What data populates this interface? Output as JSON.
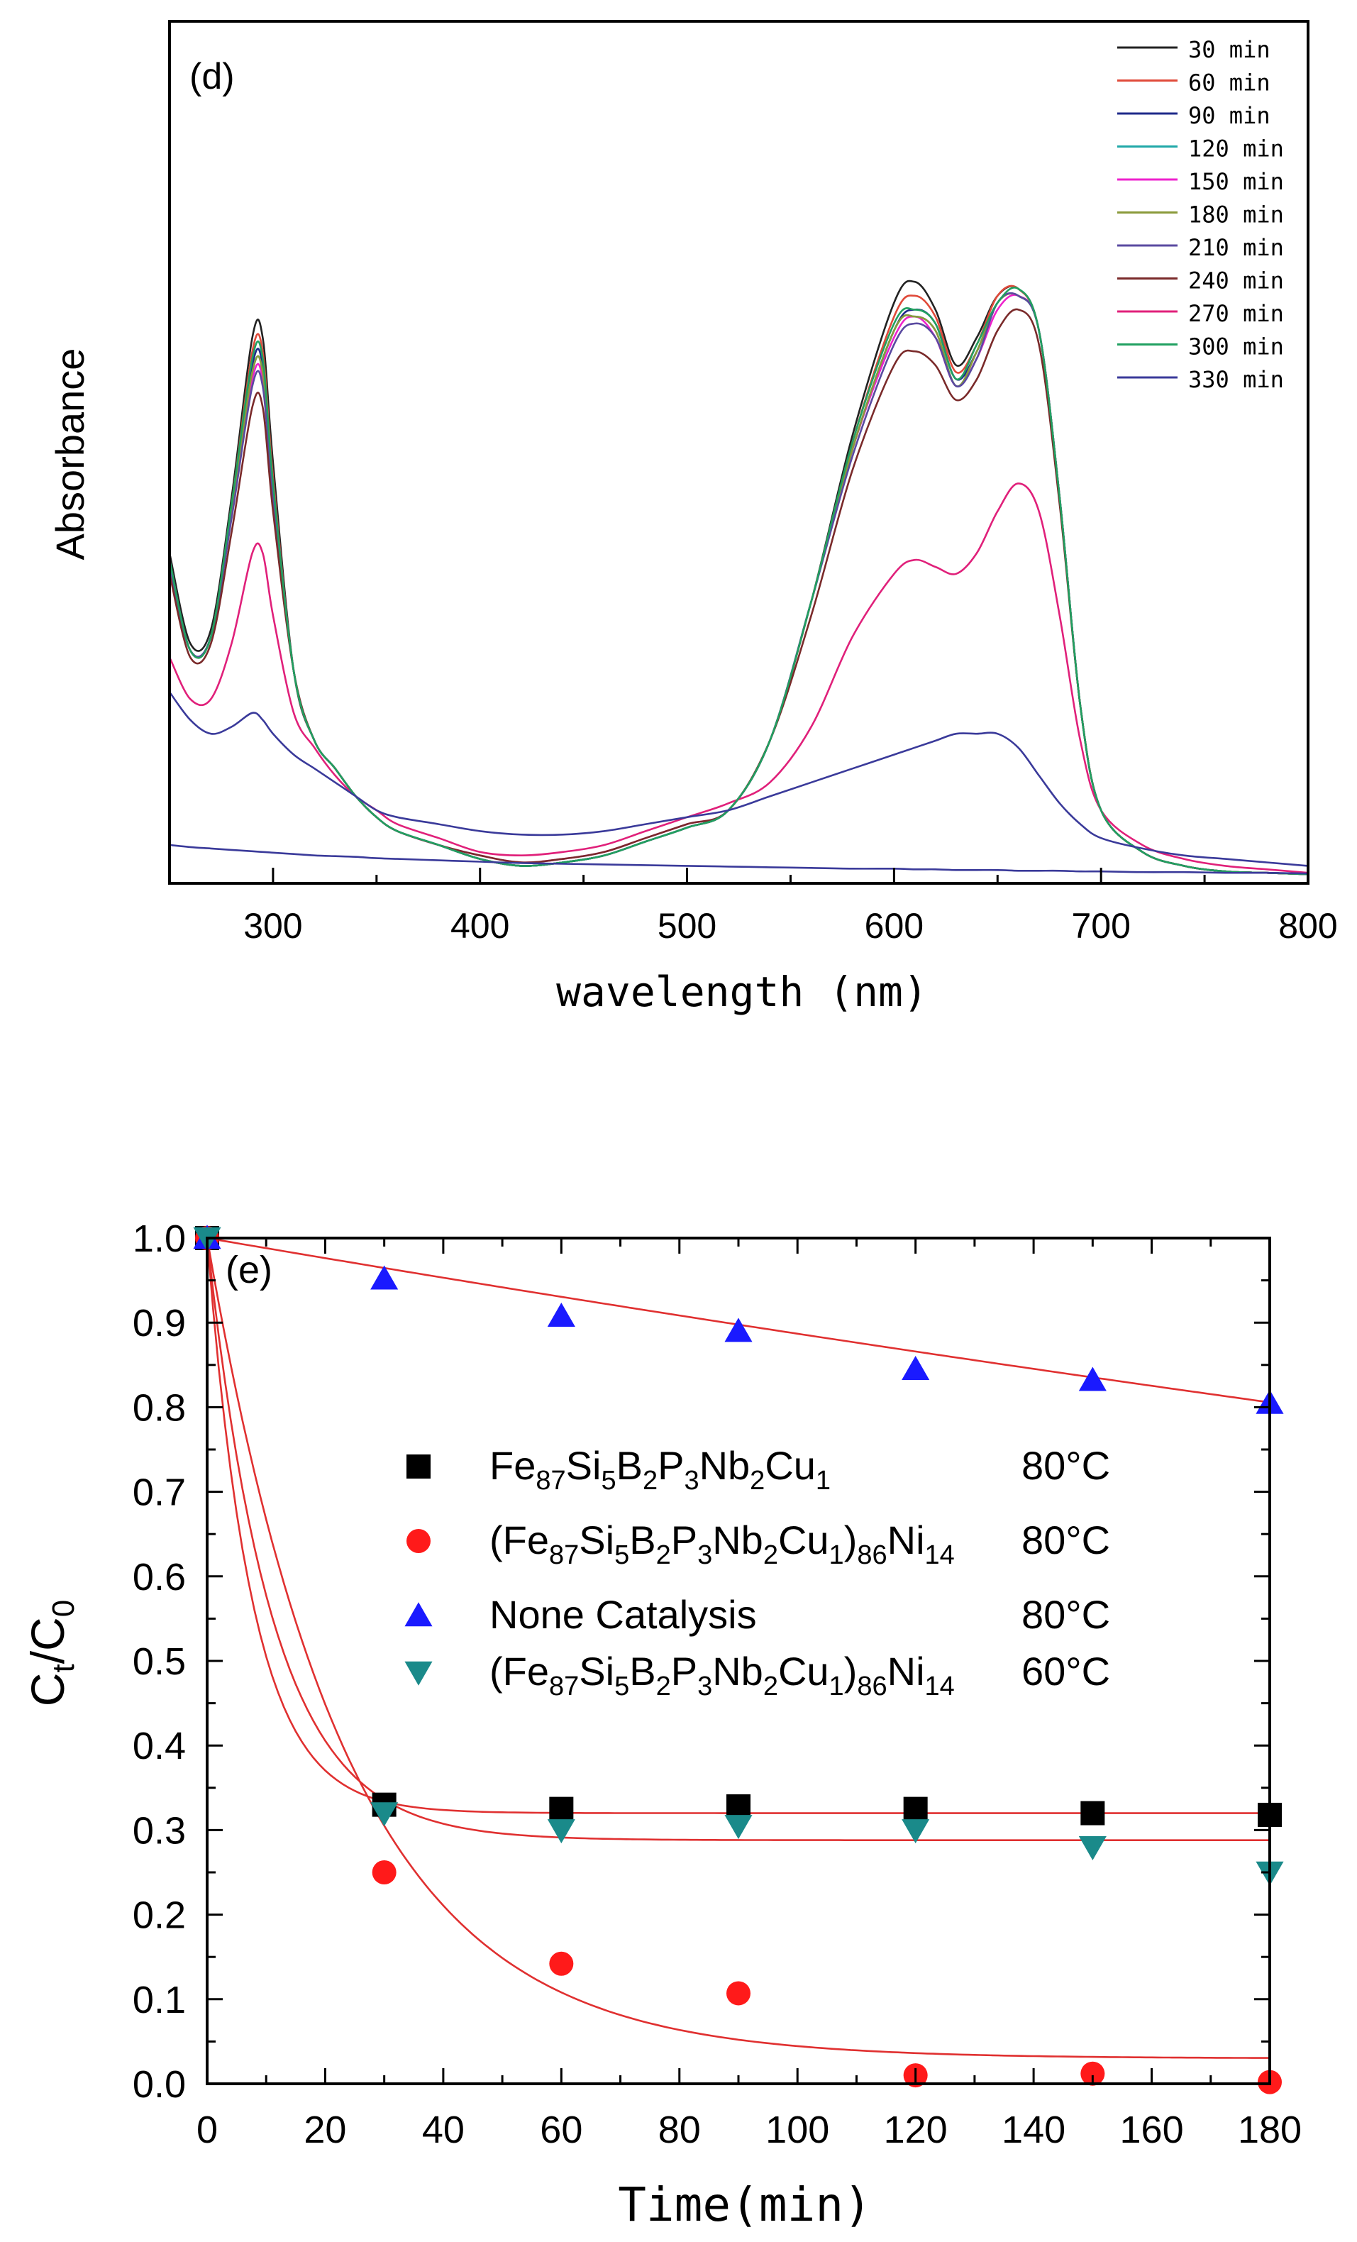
{
  "chart_data": [
    {
      "type": "line",
      "panel_label": "(d)",
      "xlabel": "wavelength (nm)",
      "ylabel": "Absorbance",
      "xlim": [
        250,
        800
      ],
      "ylim": [
        0,
        1.0
      ],
      "yticks_shown": false,
      "xticks": [
        "300",
        "400",
        "500",
        "600",
        "700",
        "800"
      ],
      "legend_position": "top-right",
      "x": [
        250,
        260,
        270,
        280,
        290,
        295,
        300,
        310,
        320,
        330,
        340,
        350,
        360,
        380,
        400,
        420,
        440,
        460,
        480,
        500,
        520,
        540,
        560,
        580,
        600,
        610,
        620,
        630,
        640,
        650,
        660,
        670,
        680,
        690,
        700,
        720,
        740,
        760,
        780,
        800
      ],
      "series": [
        {
          "name": "30 min",
          "color": "#222222",
          "values": [
            0.47,
            0.34,
            0.36,
            0.55,
            0.78,
            0.78,
            0.6,
            0.3,
            0.2,
            0.16,
            0.12,
            0.09,
            0.07,
            0.05,
            0.03,
            0.02,
            0.025,
            0.035,
            0.055,
            0.075,
            0.1,
            0.2,
            0.4,
            0.64,
            0.83,
            0.86,
            0.82,
            0.74,
            0.78,
            0.84,
            0.85,
            0.79,
            0.55,
            0.25,
            0.1,
            0.04,
            0.02,
            0.012,
            0.01,
            0.008
          ]
        },
        {
          "name": "60 min",
          "color": "#e04a3a",
          "values": [
            0.46,
            0.33,
            0.35,
            0.54,
            0.76,
            0.76,
            0.58,
            0.3,
            0.2,
            0.16,
            0.12,
            0.09,
            0.07,
            0.05,
            0.03,
            0.02,
            0.025,
            0.035,
            0.055,
            0.075,
            0.1,
            0.2,
            0.4,
            0.63,
            0.81,
            0.84,
            0.81,
            0.73,
            0.77,
            0.84,
            0.85,
            0.79,
            0.55,
            0.25,
            0.1,
            0.04,
            0.02,
            0.012,
            0.01,
            0.008
          ]
        },
        {
          "name": "90 min",
          "color": "#1f2a8a",
          "values": [
            0.46,
            0.33,
            0.35,
            0.53,
            0.74,
            0.74,
            0.57,
            0.3,
            0.2,
            0.16,
            0.12,
            0.09,
            0.07,
            0.05,
            0.03,
            0.02,
            0.025,
            0.035,
            0.055,
            0.075,
            0.1,
            0.2,
            0.4,
            0.62,
            0.79,
            0.82,
            0.8,
            0.72,
            0.76,
            0.83,
            0.84,
            0.79,
            0.55,
            0.25,
            0.1,
            0.04,
            0.02,
            0.012,
            0.01,
            0.008
          ]
        },
        {
          "name": "120 min",
          "color": "#20a8a8",
          "values": [
            0.45,
            0.33,
            0.35,
            0.53,
            0.73,
            0.73,
            0.56,
            0.3,
            0.2,
            0.16,
            0.12,
            0.09,
            0.07,
            0.05,
            0.03,
            0.02,
            0.025,
            0.035,
            0.055,
            0.075,
            0.1,
            0.2,
            0.4,
            0.62,
            0.79,
            0.81,
            0.79,
            0.71,
            0.76,
            0.83,
            0.84,
            0.79,
            0.55,
            0.25,
            0.1,
            0.04,
            0.02,
            0.012,
            0.01,
            0.008
          ]
        },
        {
          "name": "150 min",
          "color": "#ee22cc",
          "values": [
            0.45,
            0.33,
            0.35,
            0.53,
            0.72,
            0.72,
            0.56,
            0.3,
            0.2,
            0.16,
            0.12,
            0.09,
            0.07,
            0.05,
            0.035,
            0.025,
            0.03,
            0.04,
            0.06,
            0.08,
            0.1,
            0.2,
            0.4,
            0.62,
            0.78,
            0.81,
            0.78,
            0.71,
            0.75,
            0.82,
            0.84,
            0.79,
            0.55,
            0.25,
            0.1,
            0.04,
            0.02,
            0.012,
            0.01,
            0.008
          ]
        },
        {
          "name": "180 min",
          "color": "#8a9a3a",
          "values": [
            0.45,
            0.33,
            0.35,
            0.53,
            0.73,
            0.73,
            0.56,
            0.3,
            0.2,
            0.16,
            0.12,
            0.09,
            0.07,
            0.05,
            0.03,
            0.02,
            0.025,
            0.035,
            0.055,
            0.075,
            0.1,
            0.2,
            0.4,
            0.62,
            0.79,
            0.81,
            0.79,
            0.71,
            0.76,
            0.83,
            0.84,
            0.79,
            0.55,
            0.25,
            0.1,
            0.04,
            0.02,
            0.012,
            0.01,
            0.008
          ]
        },
        {
          "name": "210 min",
          "color": "#5a4aa0",
          "values": [
            0.45,
            0.33,
            0.35,
            0.52,
            0.71,
            0.71,
            0.55,
            0.3,
            0.2,
            0.16,
            0.12,
            0.09,
            0.07,
            0.05,
            0.03,
            0.02,
            0.025,
            0.035,
            0.055,
            0.075,
            0.1,
            0.2,
            0.4,
            0.61,
            0.77,
            0.8,
            0.78,
            0.71,
            0.75,
            0.83,
            0.84,
            0.79,
            0.55,
            0.25,
            0.1,
            0.04,
            0.02,
            0.012,
            0.01,
            0.008
          ]
        },
        {
          "name": "240 min",
          "color": "#7a2a2a",
          "values": [
            0.44,
            0.32,
            0.34,
            0.5,
            0.68,
            0.68,
            0.53,
            0.3,
            0.2,
            0.16,
            0.12,
            0.09,
            0.07,
            0.05,
            0.035,
            0.025,
            0.03,
            0.04,
            0.06,
            0.08,
            0.1,
            0.2,
            0.38,
            0.59,
            0.74,
            0.76,
            0.74,
            0.69,
            0.72,
            0.79,
            0.82,
            0.77,
            0.54,
            0.25,
            0.1,
            0.04,
            0.02,
            0.012,
            0.01,
            0.008
          ]
        },
        {
          "name": "270 min",
          "color": "#e0207a",
          "values": [
            0.32,
            0.26,
            0.26,
            0.34,
            0.47,
            0.47,
            0.38,
            0.24,
            0.19,
            0.15,
            0.12,
            0.1,
            0.08,
            0.06,
            0.04,
            0.035,
            0.04,
            0.05,
            0.07,
            0.09,
            0.11,
            0.14,
            0.22,
            0.35,
            0.44,
            0.46,
            0.45,
            0.44,
            0.47,
            0.53,
            0.57,
            0.53,
            0.38,
            0.2,
            0.1,
            0.05,
            0.03,
            0.02,
            0.015,
            0.01
          ]
        },
        {
          "name": "300 min",
          "color": "#20a060",
          "values": [
            0.46,
            0.33,
            0.35,
            0.54,
            0.75,
            0.75,
            0.57,
            0.3,
            0.2,
            0.16,
            0.12,
            0.09,
            0.07,
            0.05,
            0.03,
            0.02,
            0.025,
            0.035,
            0.055,
            0.075,
            0.1,
            0.2,
            0.4,
            0.63,
            0.8,
            0.82,
            0.8,
            0.72,
            0.77,
            0.83,
            0.85,
            0.79,
            0.55,
            0.25,
            0.1,
            0.04,
            0.02,
            0.012,
            0.01,
            0.008
          ]
        },
        {
          "name": "330 min",
          "color": "#3a3a9a",
          "values": [
            0.27,
            0.23,
            0.21,
            0.22,
            0.24,
            0.23,
            0.21,
            0.18,
            0.16,
            0.14,
            0.12,
            0.1,
            0.09,
            0.08,
            0.07,
            0.065,
            0.065,
            0.07,
            0.08,
            0.09,
            0.1,
            0.12,
            0.14,
            0.16,
            0.18,
            0.19,
            0.2,
            0.21,
            0.21,
            0.21,
            0.19,
            0.15,
            0.11,
            0.08,
            0.06,
            0.045,
            0.035,
            0.03,
            0.025,
            0.02
          ]
        },
        {
          "name": "",
          "color": "#3a3a9a",
          "legend": false,
          "values": [
            0.05,
            0.047,
            0.045,
            0.043,
            0.041,
            0.04,
            0.039,
            0.037,
            0.035,
            0.034,
            0.033,
            0.031,
            0.03,
            0.028,
            0.026,
            0.024,
            0.023,
            0.022,
            0.021,
            0.02,
            0.019,
            0.018,
            0.017,
            0.016,
            0.016,
            0.015,
            0.015,
            0.014,
            0.014,
            0.014,
            0.013,
            0.013,
            0.013,
            0.012,
            0.012,
            0.011,
            0.011,
            0.01,
            0.01,
            0.009
          ]
        }
      ]
    },
    {
      "type": "scatter",
      "panel_label": "(e)",
      "xlabel": "Time(min)",
      "ylabel_main": "C",
      "ylabel_sub1": "t",
      "ylabel_slash": "/C",
      "ylabel_sub2": "0",
      "xlim": [
        0,
        180
      ],
      "ylim": [
        0.0,
        1.0
      ],
      "xticks": [
        "0",
        "20",
        "40",
        "60",
        "80",
        "100",
        "120",
        "140",
        "160",
        "180"
      ],
      "yticks": [
        "0.0",
        "0.1",
        "0.2",
        "0.3",
        "0.4",
        "0.5",
        "0.6",
        "0.7",
        "0.8",
        "0.9",
        "1.0"
      ],
      "legend_position": "center",
      "fit_color": "#e03030",
      "series": [
        {
          "name_parts": [
            "Fe",
            "87",
            "Si",
            "5",
            "B",
            "2",
            "P",
            "3",
            "Nb",
            "2",
            "Cu",
            "1"
          ],
          "temperature": "80°C",
          "marker": "square",
          "color": "#000000",
          "x": [
            0,
            30,
            60,
            90,
            120,
            150,
            180
          ],
          "y": [
            1.0,
            0.33,
            0.325,
            0.328,
            0.325,
            0.32,
            0.318
          ],
          "fit": {
            "c_inf": 0.32,
            "k": 0.13
          }
        },
        {
          "name_parts": [
            "(Fe",
            "87",
            "Si",
            "5",
            "B",
            "2",
            "P",
            "3",
            "Nb",
            "2",
            "Cu",
            "1",
            ")",
            "86",
            "Ni",
            "14"
          ],
          "temperature": "80°C",
          "marker": "circle",
          "color": "#ff1a1a",
          "x": [
            0,
            30,
            60,
            90,
            120,
            150,
            180
          ],
          "y": [
            1.0,
            0.25,
            0.142,
            0.107,
            0.01,
            0.012,
            0.002
          ],
          "fit": {
            "c_inf": 0.03,
            "k": 0.042
          }
        },
        {
          "name_parts": [
            "None Catalysis"
          ],
          "temperature": "80°C",
          "marker": "triangle-up",
          "color": "#1a1aff",
          "x": [
            0,
            30,
            60,
            90,
            120,
            150,
            180
          ],
          "y": [
            1.0,
            0.952,
            0.908,
            0.89,
            0.845,
            0.832,
            0.805
          ],
          "fit": {
            "c_inf": 0.0,
            "k": 0.0012
          }
        },
        {
          "name_parts": [
            "(Fe",
            "87",
            "Si",
            "5",
            "B",
            "2",
            "P",
            "3",
            "Nb",
            "2",
            "Cu",
            "1",
            ")",
            "86",
            "Ni",
            "14"
          ],
          "temperature": "60°C",
          "marker": "triangle-down",
          "color": "#1a8a8a",
          "x": [
            0,
            30,
            60,
            90,
            120,
            150,
            180
          ],
          "y": [
            1.0,
            0.32,
            0.3,
            0.305,
            0.3,
            0.28,
            0.25
          ],
          "fit": {
            "c_inf": 0.288,
            "k": 0.09
          }
        }
      ]
    }
  ]
}
